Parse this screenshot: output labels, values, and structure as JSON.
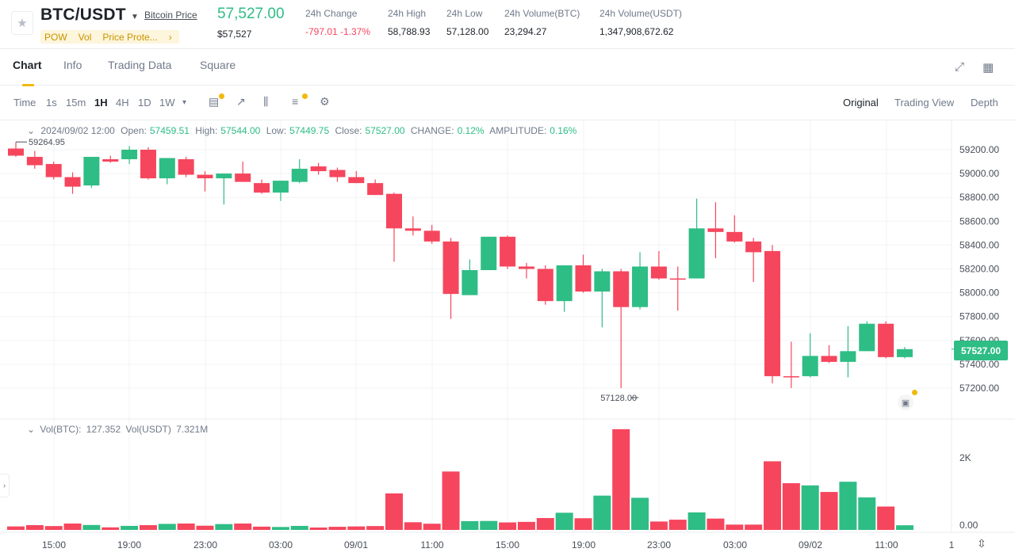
{
  "header": {
    "pair": "BTC/USDT",
    "coin_link": "Bitcoin Price",
    "tags": [
      "POW",
      "Vol",
      "Price Prote...",
      "›"
    ],
    "last_price": "57,527.00",
    "last_price_usd": "$57,527",
    "stats": [
      {
        "label": "24h Change",
        "value": "-797.01 -1.37%",
        "negative": true
      },
      {
        "label": "24h High",
        "value": "58,788.93"
      },
      {
        "label": "24h Low",
        "value": "57,128.00"
      },
      {
        "label": "24h Volume(BTC)",
        "value": "23,294.27"
      },
      {
        "label": "24h Volume(USDT)",
        "value": "1,347,908,672.62"
      }
    ]
  },
  "tabs": [
    "Chart",
    "Info",
    "Trading Data",
    "Square"
  ],
  "toolbar": {
    "timeframes": [
      "Time",
      "1s",
      "15m",
      "1H",
      "4H",
      "1D",
      "1W",
      "▾"
    ],
    "active_timeframe": "1H",
    "views": [
      "Original",
      "Trading View",
      "Depth"
    ],
    "active_view": "Original"
  },
  "ohlc": {
    "date": "2024/09/02 12:00",
    "open_label": "Open:",
    "open": "57459.51",
    "high_label": "High:",
    "high": "57544.00",
    "low_label": "Low:",
    "low": "57449.75",
    "close_label": "Close:",
    "close": "57527.00",
    "change_label": "CHANGE:",
    "change": "0.12%",
    "amplitude_label": "AMPLITUDE:",
    "amplitude": "0.16%"
  },
  "volume_info": {
    "btc_label": "Vol(BTC):",
    "btc": "127.352",
    "usdt_label": "Vol(USDT)",
    "usdt": "7.321M"
  },
  "current_price_tag": "57527.00",
  "colors": {
    "up": "#2ebd85",
    "down": "#f6465d",
    "accent": "#f0b90b"
  },
  "chart_data": {
    "type": "candlestick",
    "y_ticks": [
      59200,
      59000,
      58800,
      58600,
      58400,
      58200,
      58000,
      57800,
      57600,
      57400,
      57200
    ],
    "y_tick_labels": [
      "59200.00",
      "59000.00",
      "58800.00",
      "58600.00",
      "58400.00",
      "58200.00",
      "58000.00",
      "57800.00",
      "57600.00",
      "57400.00",
      "57200.00"
    ],
    "ylim": [
      57000,
      59450
    ],
    "x_tick_labels": [
      "15:00",
      "19:00",
      "23:00",
      "03:00",
      "09/01",
      "11:00",
      "15:00",
      "19:00",
      "23:00",
      "03:00",
      "09/02",
      "11:00",
      "1"
    ],
    "vol_tick_labels": [
      "2K",
      "0.00"
    ],
    "vol_max": 2800,
    "high_marker": "59264.95",
    "low_marker": "57128.00",
    "candles": [
      {
        "o": 59210,
        "h": 59265,
        "c": 59150,
        "l": 59140,
        "v": 95
      },
      {
        "o": 59140,
        "h": 59190,
        "c": 59070,
        "l": 59040,
        "v": 130
      },
      {
        "o": 59080,
        "h": 59100,
        "c": 58970,
        "l": 58950,
        "v": 105
      },
      {
        "o": 58970,
        "h": 59010,
        "c": 58890,
        "l": 58830,
        "v": 175
      },
      {
        "o": 58900,
        "h": 59140,
        "c": 59140,
        "l": 58880,
        "v": 135
      },
      {
        "o": 59120,
        "h": 59150,
        "c": 59100,
        "l": 59090,
        "v": 70
      },
      {
        "o": 59120,
        "h": 59230,
        "c": 59200,
        "l": 59080,
        "v": 110
      },
      {
        "o": 59200,
        "h": 59220,
        "c": 58960,
        "l": 58950,
        "v": 130
      },
      {
        "o": 58960,
        "h": 59130,
        "c": 59130,
        "l": 58910,
        "v": 165
      },
      {
        "o": 59120,
        "h": 59140,
        "c": 58990,
        "l": 58970,
        "v": 175
      },
      {
        "o": 58990,
        "h": 59020,
        "c": 58960,
        "l": 58850,
        "v": 115
      },
      {
        "o": 58960,
        "h": 59000,
        "c": 59000,
        "l": 58740,
        "v": 160
      },
      {
        "o": 59000,
        "h": 59100,
        "c": 58930,
        "l": 58930,
        "v": 175
      },
      {
        "o": 58920,
        "h": 58950,
        "c": 58840,
        "l": 58830,
        "v": 90
      },
      {
        "o": 58840,
        "h": 58940,
        "c": 58940,
        "l": 58770,
        "v": 80
      },
      {
        "o": 58930,
        "h": 59120,
        "c": 59040,
        "l": 58920,
        "v": 110
      },
      {
        "o": 59060,
        "h": 59090,
        "c": 59020,
        "l": 58990,
        "v": 65
      },
      {
        "o": 59030,
        "h": 59050,
        "c": 58970,
        "l": 58930,
        "v": 85
      },
      {
        "o": 58970,
        "h": 59020,
        "c": 58920,
        "l": 58920,
        "v": 95
      },
      {
        "o": 58920,
        "h": 58950,
        "c": 58820,
        "l": 58820,
        "v": 105
      },
      {
        "o": 58830,
        "h": 58840,
        "c": 58540,
        "l": 58260,
        "v": 1000
      },
      {
        "o": 58540,
        "h": 58640,
        "c": 58520,
        "l": 58480,
        "v": 210
      },
      {
        "o": 58520,
        "h": 58570,
        "c": 58430,
        "l": 58410,
        "v": 170
      },
      {
        "o": 58430,
        "h": 58460,
        "c": 57990,
        "l": 57780,
        "v": 1600
      },
      {
        "o": 57980,
        "h": 58280,
        "c": 58190,
        "l": 57980,
        "v": 240
      },
      {
        "o": 58190,
        "h": 58470,
        "c": 58470,
        "l": 58190,
        "v": 245
      },
      {
        "o": 58470,
        "h": 58480,
        "c": 58220,
        "l": 58200,
        "v": 205
      },
      {
        "o": 58220,
        "h": 58250,
        "c": 58200,
        "l": 58120,
        "v": 220
      },
      {
        "o": 58200,
        "h": 58230,
        "c": 57930,
        "l": 57900,
        "v": 325
      },
      {
        "o": 57930,
        "h": 58230,
        "c": 58230,
        "l": 57840,
        "v": 470
      },
      {
        "o": 58230,
        "h": 58320,
        "c": 58010,
        "l": 58000,
        "v": 320
      },
      {
        "o": 58010,
        "h": 58200,
        "c": 58180,
        "l": 57710,
        "v": 940
      },
      {
        "o": 58180,
        "h": 58200,
        "c": 57880,
        "l": 57200,
        "v": 2760
      },
      {
        "o": 57880,
        "h": 58340,
        "c": 58220,
        "l": 57860,
        "v": 880
      },
      {
        "o": 58220,
        "h": 58350,
        "c": 58120,
        "l": 58110,
        "v": 230
      },
      {
        "o": 58120,
        "h": 58220,
        "c": 58110,
        "l": 57850,
        "v": 280
      },
      {
        "o": 58120,
        "h": 58790,
        "c": 58540,
        "l": 58120,
        "v": 480
      },
      {
        "o": 58540,
        "h": 58760,
        "c": 58510,
        "l": 58290,
        "v": 310
      },
      {
        "o": 58510,
        "h": 58650,
        "c": 58430,
        "l": 58420,
        "v": 145
      },
      {
        "o": 58430,
        "h": 58460,
        "c": 58340,
        "l": 58090,
        "v": 145
      },
      {
        "o": 58350,
        "h": 58400,
        "c": 57300,
        "l": 57240,
        "v": 1880
      },
      {
        "o": 57300,
        "h": 57590,
        "c": 57290,
        "l": 57200,
        "v": 1280
      },
      {
        "o": 57300,
        "h": 57660,
        "c": 57470,
        "l": 57290,
        "v": 1220
      },
      {
        "o": 57470,
        "h": 57560,
        "c": 57420,
        "l": 57410,
        "v": 1040
      },
      {
        "o": 57420,
        "h": 57720,
        "c": 57510,
        "l": 57290,
        "v": 1320
      },
      {
        "o": 57510,
        "h": 57760,
        "c": 57740,
        "l": 57510,
        "v": 890
      },
      {
        "o": 57740,
        "h": 57760,
        "c": 57460,
        "l": 57450,
        "v": 640
      },
      {
        "o": 57460,
        "h": 57544,
        "c": 57527,
        "l": 57450,
        "v": 127
      }
    ]
  }
}
